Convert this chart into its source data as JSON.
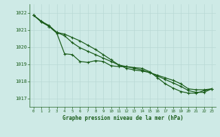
{
  "title": "Graphe pression niveau de la mer (hPa)",
  "background_color": "#ceeae6",
  "grid_color": "#b8d8d4",
  "line_color": "#1a5c1a",
  "x_labels": [
    "0",
    "1",
    "2",
    "3",
    "4",
    "5",
    "6",
    "7",
    "8",
    "9",
    "10",
    "11",
    "12",
    "13",
    "14",
    "15",
    "16",
    "17",
    "18",
    "19",
    "20",
    "21",
    "22",
    "23"
  ],
  "ylim": [
    1016.5,
    1022.5
  ],
  "yticks": [
    1017,
    1018,
    1019,
    1020,
    1021,
    1022
  ],
  "series1": [
    1021.85,
    1021.45,
    1021.2,
    1020.8,
    1019.6,
    1019.55,
    1019.15,
    1019.1,
    1019.2,
    1019.15,
    1018.9,
    1018.85,
    1018.85,
    1018.8,
    1018.75,
    1018.55,
    1018.2,
    1017.85,
    1017.6,
    1017.4,
    1017.3,
    1017.3,
    1017.45,
    1017.55
  ],
  "series2": [
    1021.85,
    1021.5,
    1021.25,
    1020.85,
    1020.65,
    1020.25,
    1019.95,
    1019.75,
    1019.55,
    1019.35,
    1019.15,
    1018.95,
    1018.85,
    1018.75,
    1018.65,
    1018.5,
    1018.3,
    1018.1,
    1017.9,
    1017.7,
    1017.45,
    1017.35,
    1017.35,
    1017.55
  ],
  "series3": [
    1021.85,
    1021.5,
    1021.2,
    1020.85,
    1020.75,
    1020.55,
    1020.35,
    1020.1,
    1019.85,
    1019.55,
    1019.25,
    1018.95,
    1018.75,
    1018.65,
    1018.6,
    1018.5,
    1018.35,
    1018.2,
    1018.05,
    1017.85,
    1017.55,
    1017.5,
    1017.5,
    1017.55
  ]
}
